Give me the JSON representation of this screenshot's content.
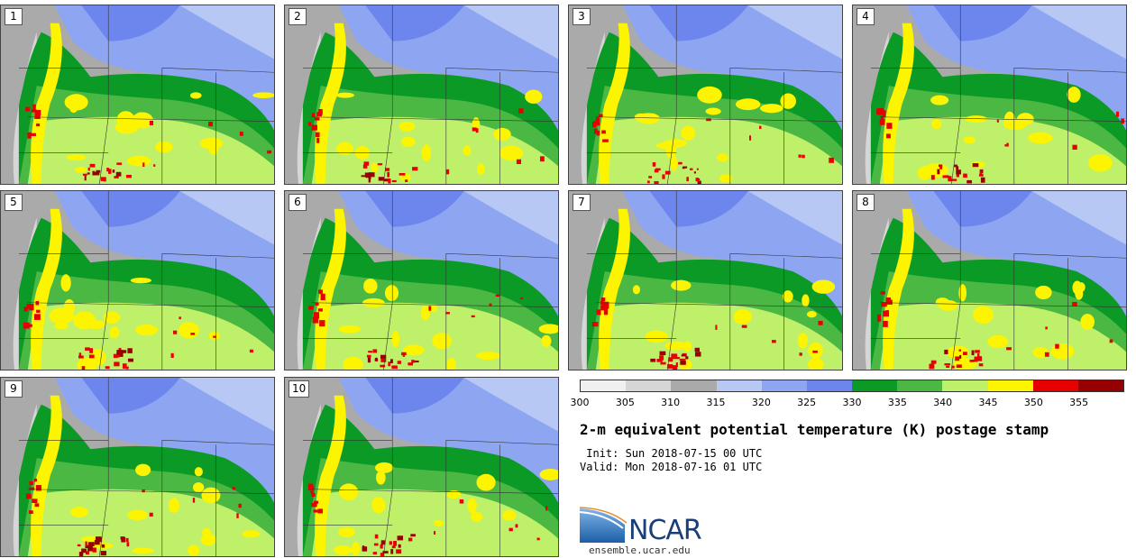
{
  "panels": [
    {
      "label": "1"
    },
    {
      "label": "2"
    },
    {
      "label": "3"
    },
    {
      "label": "4"
    },
    {
      "label": "5"
    },
    {
      "label": "6"
    },
    {
      "label": "7"
    },
    {
      "label": "8"
    },
    {
      "label": "9"
    },
    {
      "label": "10"
    }
  ],
  "colorbar": {
    "colors": [
      "#f0f0f0",
      "#d6d6d6",
      "#aaaaaa",
      "#b8c8f4",
      "#8ea6f2",
      "#6c86ee",
      "#0c9a26",
      "#4cb844",
      "#bef06a",
      "#fcf400",
      "#e60000",
      "#960000"
    ],
    "ticks": [
      "300",
      "305",
      "310",
      "315",
      "320",
      "325",
      "330",
      "335",
      "340",
      "345",
      "350",
      "355"
    ]
  },
  "title": "2-m equivalent potential temperature (K) postage stamp",
  "init": " Init: Sun 2018-07-15 00 UTC",
  "valid": "Valid: Mon 2018-07-16 01 UTC",
  "logo": {
    "text": "NCAR",
    "url": "ensemble.ucar.edu"
  }
}
